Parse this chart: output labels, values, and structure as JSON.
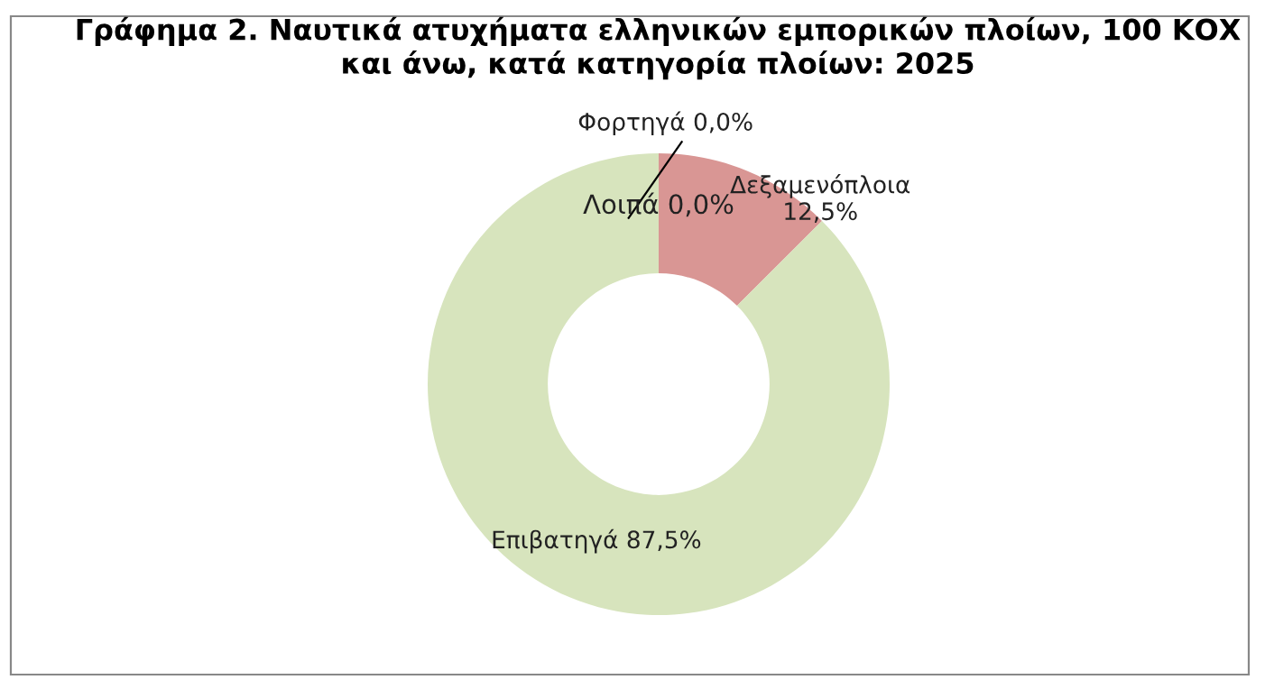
{
  "chart_data": {
    "type": "donut",
    "title": "Γράφημα 2. Ναυτικά ατυχήματα ελληνικών εμπορικών πλοίων, 100 ΚΟΧ και άνω, κατά κατηγορία πλοίων: 2025",
    "categories": [
      "Φορτηγά",
      "Δεξαμενόπλοια",
      "Επιβατηγά",
      "Λοιπά"
    ],
    "values": [
      0.0,
      12.5,
      87.5,
      0.0
    ],
    "value_labels": [
      "0,0%",
      "12,5%",
      "87,5%",
      "0,0%"
    ],
    "colors": [
      "#4f81bd",
      "#d99694",
      "#d7e4bd",
      "#8064a2"
    ]
  }
}
